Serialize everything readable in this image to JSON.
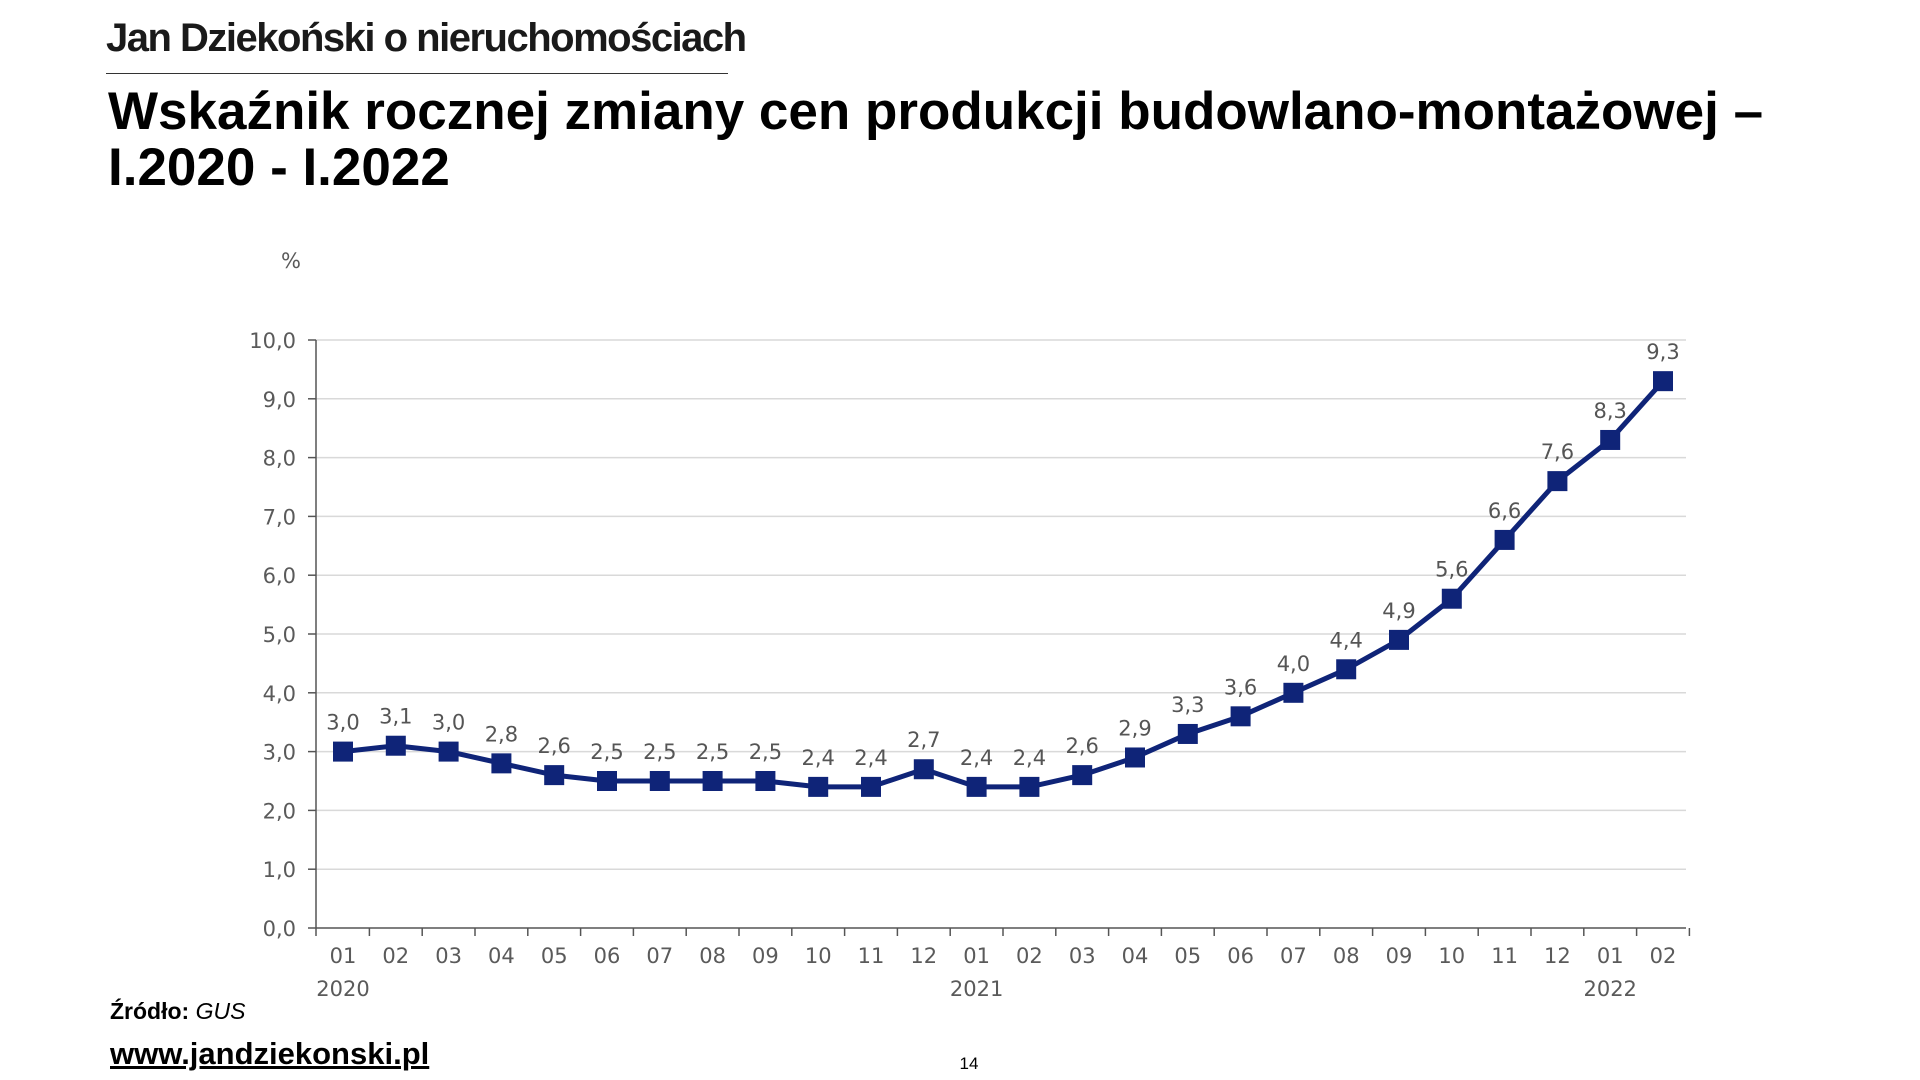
{
  "header": {
    "brand": "Jan Dziekoński o nieruchomościach",
    "title": "Wskaźnik rocznej zmiany cen produkcji budowlano-montażowej – I.2020 - I.2022"
  },
  "footer": {
    "source_label": "Źródło:",
    "source_value": "GUS",
    "website": "www.jandziekonski.pl",
    "page_number": "14"
  },
  "chart_data": {
    "type": "line",
    "title": "",
    "ylabel": "%",
    "xlabel": "",
    "ylim": [
      0,
      10
    ],
    "yticks": [
      0,
      1,
      2,
      3,
      4,
      5,
      6,
      7,
      8,
      9,
      10
    ],
    "ytick_labels": [
      "0,0",
      "1,0",
      "2,0",
      "3,0",
      "4,0",
      "5,0",
      "6,0",
      "7,0",
      "8,0",
      "9,0",
      "10,0"
    ],
    "categories": [
      "01",
      "02",
      "03",
      "04",
      "05",
      "06",
      "07",
      "08",
      "09",
      "10",
      "11",
      "12",
      "01",
      "02",
      "03",
      "04",
      "05",
      "06",
      "07",
      "08",
      "09",
      "10",
      "11",
      "12",
      "01",
      "02"
    ],
    "year_labels": [
      {
        "index": 0,
        "label": "2020"
      },
      {
        "index": 12,
        "label": "2021"
      },
      {
        "index": 24,
        "label": "2022"
      }
    ],
    "grid": true,
    "legend": "none",
    "line_color": "#0f2478",
    "grid_color": "#d9d9d9",
    "series": [
      {
        "values": [
          3.0,
          3.1,
          3.0,
          2.8,
          2.6,
          2.5,
          2.5,
          2.5,
          2.5,
          2.4,
          2.4,
          2.7,
          2.4,
          2.4,
          2.6,
          2.9,
          3.3,
          3.6,
          4.0,
          4.4,
          4.9,
          5.6,
          6.6,
          7.6,
          8.3,
          9.3
        ],
        "data_labels": [
          "3,0",
          "3,1",
          "3,0",
          "2,8",
          "2,6",
          "2,5",
          "2,5",
          "2,5",
          "2,5",
          "2,4",
          "2,4",
          "2,7",
          "2,4",
          "2,4",
          "2,6",
          "2,9",
          "3,3",
          "3,6",
          "4,0",
          "4,4",
          "4,9",
          "5,6",
          "6,6",
          "7,6",
          "8,3",
          "9,3"
        ]
      }
    ]
  }
}
